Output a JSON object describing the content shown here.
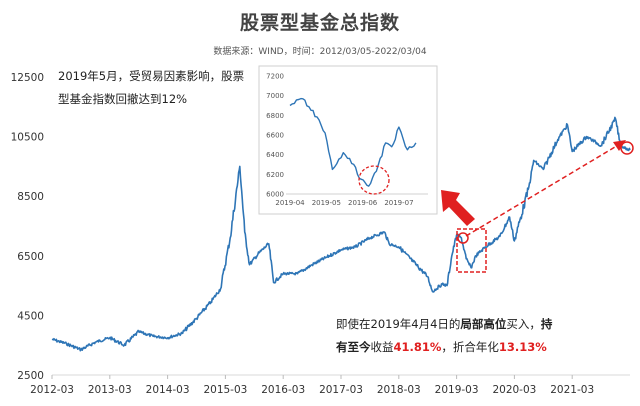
{
  "chart_data": {
    "type": "line",
    "title": "股票型基金总指数",
    "subtitle": "数据来源：WIND，时间：2012/03/05-2022/03/04",
    "series_color": "#2e75b6",
    "highlight_color": "#e02020",
    "ylim": [
      2500,
      12500
    ],
    "yticks": [
      2500,
      4500,
      6500,
      8500,
      10500,
      12500
    ],
    "x_range": [
      "2012-03",
      "2022-03"
    ],
    "xticks": [
      "2012-03",
      "2013-03",
      "2014-03",
      "2015-03",
      "2016-03",
      "2017-03",
      "2018-03",
      "2019-03",
      "2020-03",
      "2021-03"
    ],
    "x": [
      "2012-03",
      "2012-06",
      "2012-09",
      "2012-12",
      "2013-03",
      "2013-06",
      "2013-09",
      "2013-12",
      "2014-03",
      "2014-06",
      "2014-09",
      "2014-12",
      "2015-02",
      "2015-04",
      "2015-06",
      "2015-07",
      "2015-08",
      "2015-10",
      "2015-12",
      "2016-01",
      "2016-03",
      "2016-06",
      "2016-09",
      "2016-12",
      "2017-03",
      "2017-06",
      "2017-09",
      "2017-12",
      "2018-01",
      "2018-03",
      "2018-06",
      "2018-09",
      "2018-10",
      "2018-12",
      "2019-01",
      "2019-02",
      "2019-03",
      "2019-04",
      "2019-05",
      "2019-06",
      "2019-07",
      "2019-09",
      "2019-12",
      "2020-02",
      "2020-03",
      "2020-06",
      "2020-07",
      "2020-09",
      "2020-12",
      "2021-02",
      "2021-03",
      "2021-06",
      "2021-09",
      "2021-12",
      "2022-01",
      "2022-03"
    ],
    "values": [
      3700,
      3550,
      3350,
      3600,
      3750,
      3500,
      3950,
      3800,
      3750,
      3900,
      4400,
      4950,
      5400,
      7100,
      9500,
      7300,
      6200,
      6600,
      6900,
      5600,
      5900,
      5900,
      6200,
      6450,
      6700,
      6800,
      7100,
      7300,
      6900,
      6800,
      6300,
      5800,
      5300,
      5550,
      5500,
      6500,
      7200,
      7100,
      6400,
      6100,
      6500,
      6800,
      7150,
      7800,
      7000,
      8800,
      9700,
      9400,
      10400,
      10900,
      10000,
      10500,
      10200,
      11100,
      10200,
      10050
    ],
    "inset": {
      "ylim": [
        6000,
        7200
      ],
      "yticks": [
        6000,
        6200,
        6400,
        6600,
        6800,
        7000,
        7200
      ],
      "xticks": [
        "2019-04",
        "2019-05",
        "2019-06",
        "2019-07"
      ],
      "x": [
        "2019-04-01",
        "2019-04-10",
        "2019-04-20",
        "2019-04-30",
        "2019-05-06",
        "2019-05-15",
        "2019-05-22",
        "2019-05-30",
        "2019-06-06",
        "2019-06-14",
        "2019-06-20",
        "2019-06-25",
        "2019-07-01",
        "2019-07-08",
        "2019-07-15"
      ],
      "values": [
        6900,
        6970,
        6850,
        6620,
        6250,
        6420,
        6310,
        6150,
        6080,
        6300,
        6520,
        6480,
        6680,
        6450,
        6520
      ]
    },
    "annotations": {
      "note": [
        "2019年5月，受贸易因素影响，股票",
        "型基金指数回撤达到12%"
      ],
      "result_line1": {
        "part1": "即使在2019年4月4日的",
        "part2": "局部高位",
        "part3": "买入，",
        "part4": "持"
      },
      "result_line2": {
        "part1": "有至今",
        "part2": "收益",
        "part3": "41.81%",
        "part4": "，折合年化",
        "part5": "13.13%"
      }
    }
  }
}
